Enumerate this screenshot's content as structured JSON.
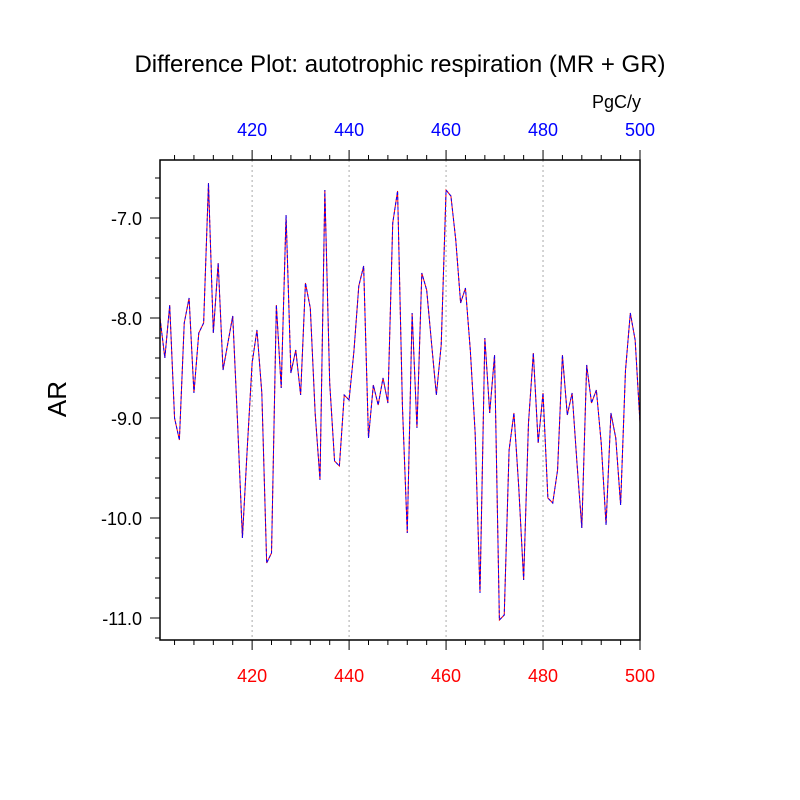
{
  "chart_data": {
    "type": "line",
    "title": "Difference Plot: autotrophic respiration (MR + GR)",
    "units": "PgC/y",
    "ylabel": "AR",
    "xlim": [
      401,
      500
    ],
    "ylim": [
      -11.22,
      -6.42
    ],
    "yticks": [
      -11.0,
      -10.0,
      -9.0,
      -8.0,
      -7.0
    ],
    "ytick_labels": [
      "-11.0",
      "-10.0",
      "-9.0",
      "-8.0",
      "-7.0"
    ],
    "xticks": [
      420,
      440,
      460,
      480,
      500
    ],
    "xtick_labels_bottom": [
      "420",
      "440",
      "460",
      "480",
      "500"
    ],
    "xtick_labels_top": [
      "420",
      "440",
      "460",
      "480",
      "500"
    ],
    "grid_x": true,
    "colors": {
      "bottom_axis_labels": "#ff0000",
      "top_axis_labels": "#0000ff",
      "series_a": "#ff0000",
      "series_b": "#0000ff",
      "grid": "#aaaaaa",
      "axis": "#000000"
    },
    "series": [
      {
        "name": "series-1",
        "x": [
          401,
          402,
          403,
          404,
          405,
          406,
          407,
          408,
          409,
          410,
          411,
          412,
          413,
          414,
          415,
          416,
          417,
          418,
          419,
          420,
          421,
          422,
          423,
          424,
          425,
          426,
          427,
          428,
          429,
          430,
          431,
          432,
          433,
          434,
          435,
          436,
          437,
          438,
          439,
          440,
          441,
          442,
          443,
          444,
          445,
          446,
          447,
          448,
          449,
          450,
          451,
          452,
          453,
          454,
          455,
          456,
          457,
          458,
          459,
          460,
          461,
          462,
          463,
          464,
          465,
          466,
          467,
          468,
          469,
          470,
          471,
          472,
          473,
          474,
          475,
          476,
          477,
          478,
          479,
          480,
          481,
          482,
          483,
          484,
          485,
          486,
          487,
          488,
          489,
          490,
          491,
          492,
          493,
          494,
          495,
          496,
          497,
          498,
          499,
          500
        ],
        "values": [
          -8.0,
          -8.4,
          -7.87,
          -9.0,
          -9.22,
          -8.05,
          -7.8,
          -8.75,
          -8.15,
          -8.05,
          -6.65,
          -8.15,
          -7.45,
          -8.52,
          -8.25,
          -7.98,
          -9.05,
          -10.2,
          -9.3,
          -8.45,
          -8.12,
          -8.75,
          -10.45,
          -10.35,
          -7.87,
          -8.7,
          -6.97,
          -8.55,
          -8.32,
          -8.77,
          -7.65,
          -7.9,
          -8.95,
          -9.62,
          -6.72,
          -8.65,
          -9.43,
          -9.48,
          -8.77,
          -8.82,
          -8.33,
          -7.68,
          -7.48,
          -9.2,
          -8.67,
          -8.87,
          -8.6,
          -8.85,
          -7.05,
          -6.73,
          -8.88,
          -10.15,
          -7.95,
          -9.1,
          -7.55,
          -7.72,
          -8.25,
          -8.77,
          -8.27,
          -6.72,
          -6.78,
          -7.22,
          -7.85,
          -7.7,
          -8.32,
          -9.15,
          -10.75,
          -8.2,
          -8.95,
          -8.37,
          -11.02,
          -10.97,
          -9.32,
          -8.95,
          -9.7,
          -10.62,
          -9.05,
          -8.35,
          -9.25,
          -8.75,
          -9.8,
          -9.85,
          -9.52,
          -8.37,
          -8.97,
          -8.75,
          -9.45,
          -10.1,
          -8.47,
          -8.85,
          -8.72,
          -9.25,
          -10.07,
          -8.95,
          -9.2,
          -9.87,
          -8.53,
          -7.95,
          -8.22,
          -9.05
        ]
      }
    ]
  }
}
